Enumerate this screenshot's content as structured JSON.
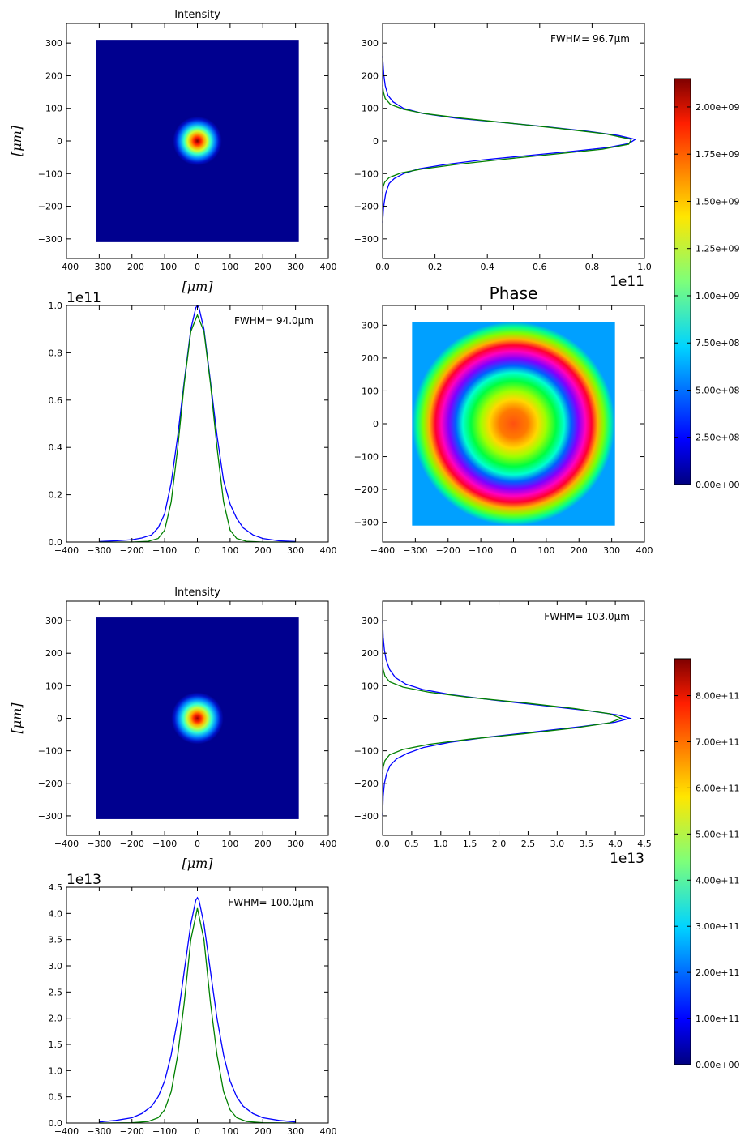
{
  "chart_data": [
    {
      "id": "top-intensity-map",
      "type": "heatmap",
      "title": "Intensity",
      "ylabel": "[μm]",
      "xlabel": "[μm]",
      "xlim": [
        -400,
        400
      ],
      "ylim": [
        -360,
        360
      ],
      "xticks": [
        "−400",
        "−300",
        "−200",
        "−100",
        "0",
        "100",
        "200",
        "300",
        "400"
      ],
      "yticks": [
        "300",
        "200",
        "100",
        "0",
        "−100",
        "−200",
        "−300"
      ],
      "extent": [
        -310,
        310,
        -310,
        310
      ],
      "beam": {
        "center": [
          0,
          0
        ],
        "fwhm": 96,
        "peak": 2150000000.0
      },
      "colormap": "jet"
    },
    {
      "id": "top-y-profile",
      "type": "line",
      "xlim": [
        0,
        1.0
      ],
      "ylim": [
        -360,
        360
      ],
      "multiplier": "1e11",
      "xticks": [
        "0.0",
        "0.2",
        "0.4",
        "0.6",
        "0.8",
        "1.0"
      ],
      "yticks": [
        "300",
        "200",
        "100",
        "0",
        "−100",
        "−200",
        "−300"
      ],
      "annotation": "FWHM= 96.7μm",
      "series": [
        {
          "color": "#0000ff",
          "x": [
            0.0,
            0.003,
            0.005,
            0.01,
            0.02,
            0.04,
            0.08,
            0.15,
            0.28,
            0.45,
            0.62,
            0.78,
            0.9,
            0.965,
            0.94,
            0.86,
            0.72,
            0.55,
            0.38,
            0.24,
            0.14,
            0.08,
            0.045,
            0.025,
            0.012,
            0.006,
            0.003,
            0.0
          ],
          "y": [
            260,
            220,
            200,
            170,
            140,
            120,
            100,
            85,
            70,
            57,
            44,
            30,
            17,
            5,
            -8,
            -20,
            -32,
            -45,
            -58,
            -72,
            -85,
            -100,
            -115,
            -130,
            -160,
            -190,
            -210,
            -250
          ]
        },
        {
          "color": "#008000",
          "x": [
            0.0,
            0.003,
            0.01,
            0.03,
            0.08,
            0.16,
            0.3,
            0.48,
            0.68,
            0.85,
            0.95,
            0.94,
            0.84,
            0.66,
            0.46,
            0.28,
            0.15,
            0.07,
            0.025,
            0.008,
            0.002,
            0.0
          ],
          "y": [
            170,
            150,
            130,
            112,
            97,
            84,
            70,
            55,
            38,
            22,
            5,
            -10,
            -25,
            -40,
            -56,
            -72,
            -86,
            -98,
            -112,
            -126,
            -140,
            -160
          ]
        }
      ]
    },
    {
      "id": "top-x-profile",
      "type": "line",
      "xlim": [
        -400,
        400
      ],
      "ylim": [
        0,
        1.0
      ],
      "multiplier": "1e11",
      "xticks": [
        "−400",
        "−300",
        "−200",
        "−100",
        "0",
        "100",
        "200",
        "300",
        "400"
      ],
      "yticks": [
        "1.0",
        "0.8",
        "0.6",
        "0.4",
        "0.2",
        "0.0"
      ],
      "annotation": "FWHM= 94.0μm",
      "series": [
        {
          "color": "#0000ff",
          "x": [
            -300,
            -250,
            -200,
            -170,
            -140,
            -120,
            -100,
            -80,
            -60,
            -40,
            -20,
            -5,
            0,
            5,
            20,
            40,
            60,
            80,
            100,
            120,
            140,
            170,
            200,
            250,
            300
          ],
          "y": [
            0.002,
            0.005,
            0.01,
            0.017,
            0.03,
            0.06,
            0.12,
            0.25,
            0.45,
            0.68,
            0.9,
            0.99,
            1.0,
            0.99,
            0.9,
            0.68,
            0.45,
            0.26,
            0.16,
            0.1,
            0.06,
            0.03,
            0.015,
            0.005,
            0.002
          ]
        },
        {
          "color": "#008000",
          "x": [
            -300,
            -200,
            -150,
            -120,
            -100,
            -80,
            -60,
            -40,
            -20,
            0,
            20,
            40,
            60,
            80,
            100,
            120,
            150,
            200,
            300
          ],
          "y": [
            0.0,
            0.0,
            0.003,
            0.015,
            0.05,
            0.17,
            0.4,
            0.67,
            0.89,
            0.96,
            0.89,
            0.67,
            0.4,
            0.17,
            0.05,
            0.015,
            0.003,
            0.0,
            0.0
          ]
        }
      ]
    },
    {
      "id": "top-phase-map",
      "type": "heatmap",
      "title": "Phase",
      "xlim": [
        -400,
        400
      ],
      "ylim": [
        -360,
        360
      ],
      "xticks": [
        "−400",
        "−300",
        "−200",
        "−100",
        "0",
        "100",
        "200",
        "300",
        "400"
      ],
      "yticks": [
        "300",
        "200",
        "100",
        "0",
        "−100",
        "−200",
        "−300"
      ],
      "extent": [
        -310,
        310,
        -310,
        310
      ],
      "colormap": "hsv"
    },
    {
      "id": "bottom-intensity-map",
      "type": "heatmap",
      "title": "Intensity",
      "ylabel": "[μm]",
      "xlabel": "[μm]",
      "xlim": [
        -400,
        400
      ],
      "ylim": [
        -360,
        360
      ],
      "xticks": [
        "−400",
        "−300",
        "−200",
        "−100",
        "0",
        "100",
        "200",
        "300",
        "400"
      ],
      "yticks": [
        "300",
        "200",
        "100",
        "0",
        "−100",
        "−200",
        "−300"
      ],
      "extent": [
        -310,
        310,
        -310,
        310
      ],
      "beam": {
        "center": [
          0,
          0
        ],
        "fwhm": 102,
        "peak": 880000000000.0
      },
      "colormap": "jet"
    },
    {
      "id": "bottom-y-profile",
      "type": "line",
      "xlim": [
        0,
        4.5
      ],
      "ylim": [
        -360,
        360
      ],
      "multiplier": "1e13",
      "xticks": [
        "0.0",
        "0.5",
        "1.0",
        "1.5",
        "2.0",
        "2.5",
        "3.0",
        "3.5",
        "4.0",
        "4.5"
      ],
      "yticks": [
        "300",
        "200",
        "100",
        "0",
        "−100",
        "−200",
        "−300"
      ],
      "annotation": "FWHM= 103.0μm",
      "series": [
        {
          "color": "#0000ff",
          "x": [
            0.0,
            0.01,
            0.03,
            0.06,
            0.12,
            0.22,
            0.4,
            0.7,
            1.2,
            1.9,
            2.7,
            3.5,
            4.05,
            4.25,
            4.0,
            3.4,
            2.6,
            1.8,
            1.15,
            0.7,
            0.42,
            0.24,
            0.13,
            0.07,
            0.03,
            0.01,
            0.0
          ],
          "y": [
            300,
            250,
            210,
            180,
            150,
            125,
            105,
            88,
            72,
            56,
            40,
            24,
            10,
            0,
            -12,
            -26,
            -42,
            -58,
            -74,
            -90,
            -108,
            -125,
            -145,
            -170,
            -200,
            -240,
            -300
          ]
        },
        {
          "color": "#008000",
          "x": [
            0.0,
            0.01,
            0.04,
            0.12,
            0.35,
            0.8,
            1.5,
            2.4,
            3.3,
            3.9,
            4.1,
            3.9,
            3.3,
            2.4,
            1.5,
            0.8,
            0.35,
            0.12,
            0.04,
            0.01,
            0.0
          ],
          "y": [
            170,
            150,
            130,
            112,
            96,
            80,
            64,
            48,
            30,
            14,
            0,
            -14,
            -30,
            -48,
            -64,
            -80,
            -96,
            -112,
            -130,
            -150,
            -170
          ]
        }
      ]
    },
    {
      "id": "bottom-x-profile",
      "type": "line",
      "xlim": [
        -400,
        400
      ],
      "ylim": [
        0,
        4.5
      ],
      "multiplier": "1e13",
      "xticks": [
        "−400",
        "−300",
        "−200",
        "−100",
        "0",
        "100",
        "200",
        "300",
        "400"
      ],
      "yticks": [
        "4.5",
        "4.0",
        "3.5",
        "3.0",
        "2.5",
        "2.0",
        "1.5",
        "1.0",
        "0.5",
        "0.0"
      ],
      "annotation": "FWHM= 100.0μm",
      "series": [
        {
          "color": "#0000ff",
          "x": [
            -300,
            -250,
            -200,
            -170,
            -140,
            -120,
            -100,
            -80,
            -60,
            -40,
            -20,
            -5,
            0,
            5,
            20,
            40,
            60,
            80,
            100,
            120,
            140,
            170,
            200,
            250,
            300
          ],
          "y": [
            0.02,
            0.05,
            0.1,
            0.18,
            0.32,
            0.5,
            0.8,
            1.3,
            2.0,
            2.9,
            3.8,
            4.25,
            4.3,
            4.25,
            3.8,
            2.9,
            2.0,
            1.3,
            0.8,
            0.5,
            0.32,
            0.18,
            0.1,
            0.05,
            0.02
          ]
        },
        {
          "color": "#008000",
          "x": [
            -300,
            -200,
            -150,
            -120,
            -100,
            -80,
            -60,
            -40,
            -20,
            0,
            20,
            40,
            60,
            80,
            100,
            120,
            150,
            200,
            300
          ],
          "y": [
            0.0,
            0.005,
            0.03,
            0.1,
            0.25,
            0.6,
            1.3,
            2.3,
            3.5,
            4.1,
            3.5,
            2.3,
            1.3,
            0.6,
            0.25,
            0.1,
            0.03,
            0.005,
            0.0
          ]
        }
      ]
    }
  ],
  "colorbars": [
    {
      "id": "top-colorbar",
      "min": 0,
      "max": 2150000000.0,
      "ticks": [
        "2.00e+09",
        "1.75e+09",
        "1.50e+09",
        "1.25e+09",
        "1.00e+09",
        "7.50e+08",
        "5.00e+08",
        "2.50e+08",
        "0.00e+00"
      ],
      "tick_values": [
        2000000000.0,
        1750000000.0,
        1500000000.0,
        1250000000.0,
        1000000000.0,
        750000000.0,
        500000000.0,
        250000000.0,
        0
      ]
    },
    {
      "id": "bottom-colorbar",
      "min": 0,
      "max": 880000000000.0,
      "ticks": [
        "8.00e+11",
        "7.00e+11",
        "6.00e+11",
        "5.00e+11",
        "4.00e+11",
        "3.00e+11",
        "2.00e+11",
        "1.00e+11",
        "0.00e+00"
      ],
      "tick_values": [
        800000000000.0,
        700000000000.0,
        600000000000.0,
        500000000000.0,
        400000000000.0,
        300000000000.0,
        200000000000.0,
        100000000000.0,
        0
      ]
    }
  ]
}
